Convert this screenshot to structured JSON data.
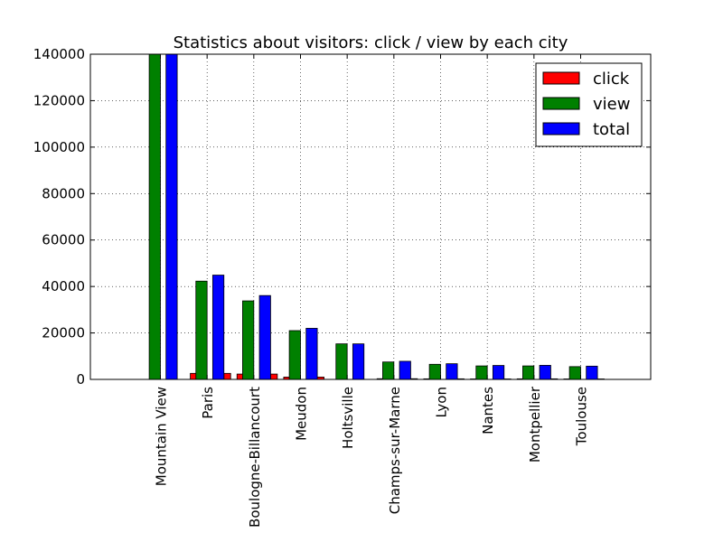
{
  "chart_data": {
    "type": "bar",
    "title": "Statistics about visitors: click / view by each city",
    "xlabel": "",
    "ylabel": "",
    "ylim": [
      0,
      140000
    ],
    "yticks": [
      0,
      20000,
      40000,
      60000,
      80000,
      100000,
      120000,
      140000
    ],
    "grid": true,
    "legend_position": "top-right",
    "categories": [
      "Mountain View",
      "Paris",
      "Boulogne-Billancourt",
      "Meudon",
      "Holtsville",
      "Champs-sur-Marne",
      "Lyon",
      "Nantes",
      "Montpellier",
      "Toulouse"
    ],
    "series": [
      {
        "name": "click",
        "color": "#ff0000",
        "values": [
          0,
          2600,
          2300,
          1000,
          0,
          300,
          250,
          200,
          250,
          200
        ]
      },
      {
        "name": "view",
        "color": "#008000",
        "values": [
          140000,
          42300,
          33800,
          21000,
          15300,
          7500,
          6500,
          5800,
          5800,
          5500
        ]
      },
      {
        "name": "total",
        "color": "#0000ff",
        "values": [
          140000,
          44900,
          36100,
          22000,
          15300,
          7800,
          6750,
          6000,
          6050,
          5700
        ]
      }
    ]
  }
}
